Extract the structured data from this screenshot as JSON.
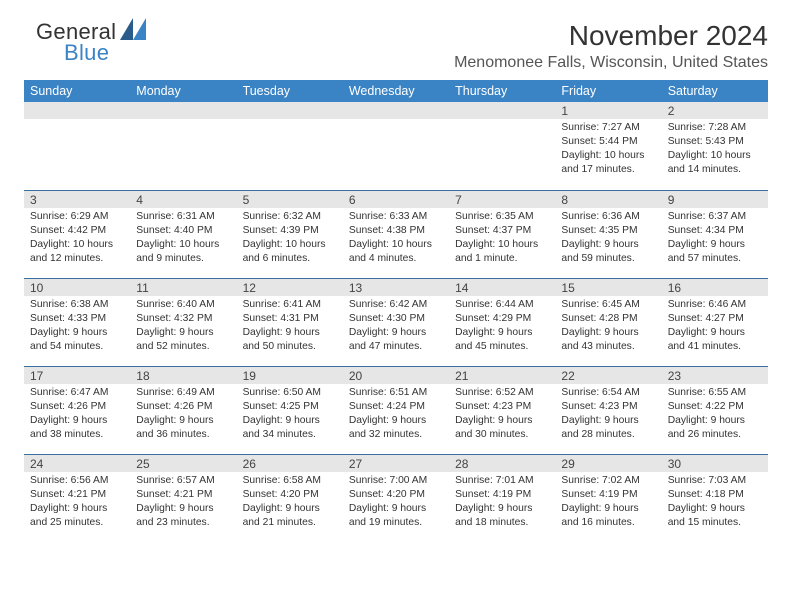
{
  "brand": {
    "part1": "General",
    "part2": "Blue"
  },
  "title": "November 2024",
  "location": "Menomonee Falls, Wisconsin, United States",
  "colors": {
    "header_bg": "#3a83c4",
    "row_divider": "#3a6fa0",
    "daynum_bg": "#e6e6e6",
    "background": "#ffffff",
    "text": "#333333"
  },
  "day_headers": [
    "Sunday",
    "Monday",
    "Tuesday",
    "Wednesday",
    "Thursday",
    "Friday",
    "Saturday"
  ],
  "weeks": [
    [
      null,
      null,
      null,
      null,
      null,
      {
        "n": "1",
        "sunrise": "7:27 AM",
        "sunset": "5:44 PM",
        "daylight": "10 hours and 17 minutes."
      },
      {
        "n": "2",
        "sunrise": "7:28 AM",
        "sunset": "5:43 PM",
        "daylight": "10 hours and 14 minutes."
      }
    ],
    [
      {
        "n": "3",
        "sunrise": "6:29 AM",
        "sunset": "4:42 PM",
        "daylight": "10 hours and 12 minutes."
      },
      {
        "n": "4",
        "sunrise": "6:31 AM",
        "sunset": "4:40 PM",
        "daylight": "10 hours and 9 minutes."
      },
      {
        "n": "5",
        "sunrise": "6:32 AM",
        "sunset": "4:39 PM",
        "daylight": "10 hours and 6 minutes."
      },
      {
        "n": "6",
        "sunrise": "6:33 AM",
        "sunset": "4:38 PM",
        "daylight": "10 hours and 4 minutes."
      },
      {
        "n": "7",
        "sunrise": "6:35 AM",
        "sunset": "4:37 PM",
        "daylight": "10 hours and 1 minute."
      },
      {
        "n": "8",
        "sunrise": "6:36 AM",
        "sunset": "4:35 PM",
        "daylight": "9 hours and 59 minutes."
      },
      {
        "n": "9",
        "sunrise": "6:37 AM",
        "sunset": "4:34 PM",
        "daylight": "9 hours and 57 minutes."
      }
    ],
    [
      {
        "n": "10",
        "sunrise": "6:38 AM",
        "sunset": "4:33 PM",
        "daylight": "9 hours and 54 minutes."
      },
      {
        "n": "11",
        "sunrise": "6:40 AM",
        "sunset": "4:32 PM",
        "daylight": "9 hours and 52 minutes."
      },
      {
        "n": "12",
        "sunrise": "6:41 AM",
        "sunset": "4:31 PM",
        "daylight": "9 hours and 50 minutes."
      },
      {
        "n": "13",
        "sunrise": "6:42 AM",
        "sunset": "4:30 PM",
        "daylight": "9 hours and 47 minutes."
      },
      {
        "n": "14",
        "sunrise": "6:44 AM",
        "sunset": "4:29 PM",
        "daylight": "9 hours and 45 minutes."
      },
      {
        "n": "15",
        "sunrise": "6:45 AM",
        "sunset": "4:28 PM",
        "daylight": "9 hours and 43 minutes."
      },
      {
        "n": "16",
        "sunrise": "6:46 AM",
        "sunset": "4:27 PM",
        "daylight": "9 hours and 41 minutes."
      }
    ],
    [
      {
        "n": "17",
        "sunrise": "6:47 AM",
        "sunset": "4:26 PM",
        "daylight": "9 hours and 38 minutes."
      },
      {
        "n": "18",
        "sunrise": "6:49 AM",
        "sunset": "4:26 PM",
        "daylight": "9 hours and 36 minutes."
      },
      {
        "n": "19",
        "sunrise": "6:50 AM",
        "sunset": "4:25 PM",
        "daylight": "9 hours and 34 minutes."
      },
      {
        "n": "20",
        "sunrise": "6:51 AM",
        "sunset": "4:24 PM",
        "daylight": "9 hours and 32 minutes."
      },
      {
        "n": "21",
        "sunrise": "6:52 AM",
        "sunset": "4:23 PM",
        "daylight": "9 hours and 30 minutes."
      },
      {
        "n": "22",
        "sunrise": "6:54 AM",
        "sunset": "4:23 PM",
        "daylight": "9 hours and 28 minutes."
      },
      {
        "n": "23",
        "sunrise": "6:55 AM",
        "sunset": "4:22 PM",
        "daylight": "9 hours and 26 minutes."
      }
    ],
    [
      {
        "n": "24",
        "sunrise": "6:56 AM",
        "sunset": "4:21 PM",
        "daylight": "9 hours and 25 minutes."
      },
      {
        "n": "25",
        "sunrise": "6:57 AM",
        "sunset": "4:21 PM",
        "daylight": "9 hours and 23 minutes."
      },
      {
        "n": "26",
        "sunrise": "6:58 AM",
        "sunset": "4:20 PM",
        "daylight": "9 hours and 21 minutes."
      },
      {
        "n": "27",
        "sunrise": "7:00 AM",
        "sunset": "4:20 PM",
        "daylight": "9 hours and 19 minutes."
      },
      {
        "n": "28",
        "sunrise": "7:01 AM",
        "sunset": "4:19 PM",
        "daylight": "9 hours and 18 minutes."
      },
      {
        "n": "29",
        "sunrise": "7:02 AM",
        "sunset": "4:19 PM",
        "daylight": "9 hours and 16 minutes."
      },
      {
        "n": "30",
        "sunrise": "7:03 AM",
        "sunset": "4:18 PM",
        "daylight": "9 hours and 15 minutes."
      }
    ]
  ],
  "labels": {
    "sunrise": "Sunrise:",
    "sunset": "Sunset:",
    "daylight": "Daylight:"
  }
}
